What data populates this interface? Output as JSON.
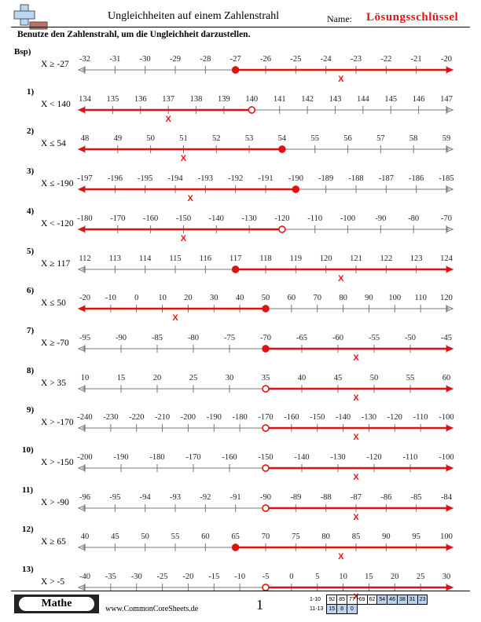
{
  "header": {
    "title": "Ungleichheiten auf einem Zahlenstrahl",
    "name_label": "Name:",
    "answer_key": "Lösungsschlüssel"
  },
  "instructions": "Benutze den Zahlenstrahl, um die Ungleichheit darzustellen.",
  "colors": {
    "accent": "#e11111",
    "line": "#777777"
  },
  "problems": [
    {
      "num": "Bsp)",
      "ineq": "X ≥ -27",
      "ticks": [
        "-32",
        "-31",
        "-30",
        "-29",
        "-28",
        "-27",
        "-26",
        "-25",
        "-24",
        "-23",
        "-22",
        "-21",
        "-20"
      ],
      "point_index": 5,
      "closed": true,
      "dir": "right",
      "x_label": "X"
    },
    {
      "num": "1)",
      "ineq": "X < 140",
      "ticks": [
        "134",
        "135",
        "136",
        "137",
        "138",
        "139",
        "140",
        "141",
        "142",
        "143",
        "144",
        "145",
        "146",
        "147"
      ],
      "point_index": 6,
      "closed": false,
      "dir": "left",
      "x_label": "X"
    },
    {
      "num": "2)",
      "ineq": "X ≤ 54",
      "ticks": [
        "48",
        "49",
        "50",
        "51",
        "52",
        "53",
        "54",
        "55",
        "56",
        "57",
        "58",
        "59"
      ],
      "point_index": 6,
      "closed": true,
      "dir": "left",
      "x_label": "X"
    },
    {
      "num": "3)",
      "ineq": "X ≤ -190",
      "ticks": [
        "-197",
        "-196",
        "-195",
        "-194",
        "-193",
        "-192",
        "-191",
        "-190",
        "-189",
        "-188",
        "-187",
        "-186",
        "-185"
      ],
      "point_index": 7,
      "closed": true,
      "dir": "left",
      "x_label": "X"
    },
    {
      "num": "4)",
      "ineq": "X < -120",
      "ticks": [
        "-180",
        "-170",
        "-160",
        "-150",
        "-140",
        "-130",
        "-120",
        "-110",
        "-100",
        "-90",
        "-80",
        "-70"
      ],
      "point_index": 6,
      "closed": false,
      "dir": "left",
      "x_label": "X"
    },
    {
      "num": "5)",
      "ineq": "X ≥ 117",
      "ticks": [
        "112",
        "113",
        "114",
        "115",
        "116",
        "117",
        "118",
        "119",
        "120",
        "121",
        "122",
        "123",
        "124"
      ],
      "point_index": 5,
      "closed": true,
      "dir": "right",
      "x_label": "X"
    },
    {
      "num": "6)",
      "ineq": "X ≤ 50",
      "ticks": [
        "-20",
        "-10",
        "0",
        "10",
        "20",
        "30",
        "40",
        "50",
        "60",
        "70",
        "80",
        "90",
        "100",
        "110",
        "120"
      ],
      "point_index": 7,
      "closed": true,
      "dir": "left",
      "x_label": "X"
    },
    {
      "num": "7)",
      "ineq": "X ≥ -70",
      "ticks": [
        "-95",
        "-90",
        "-85",
        "-80",
        "-75",
        "-70",
        "-65",
        "-60",
        "-55",
        "-50",
        "-45"
      ],
      "point_index": 5,
      "closed": true,
      "dir": "right",
      "x_label": "X"
    },
    {
      "num": "8)",
      "ineq": "X > 35",
      "ticks": [
        "10",
        "15",
        "20",
        "25",
        "30",
        "35",
        "40",
        "45",
        "50",
        "55",
        "60"
      ],
      "point_index": 5,
      "closed": false,
      "dir": "right",
      "x_label": "X"
    },
    {
      "num": "9)",
      "ineq": "X > -170",
      "ticks": [
        "-240",
        "-230",
        "-220",
        "-210",
        "-200",
        "-190",
        "-180",
        "-170",
        "-160",
        "-150",
        "-140",
        "-130",
        "-120",
        "-110",
        "-100"
      ],
      "point_index": 7,
      "closed": false,
      "dir": "right",
      "x_label": "X"
    },
    {
      "num": "10)",
      "ineq": "X > -150",
      "ticks": [
        "-200",
        "-190",
        "-180",
        "-170",
        "-160",
        "-150",
        "-140",
        "-130",
        "-120",
        "-110",
        "-100"
      ],
      "point_index": 5,
      "closed": false,
      "dir": "right",
      "x_label": "X"
    },
    {
      "num": "11)",
      "ineq": "X > -90",
      "ticks": [
        "-96",
        "-95",
        "-94",
        "-93",
        "-92",
        "-91",
        "-90",
        "-89",
        "-88",
        "-87",
        "-86",
        "-85",
        "-84"
      ],
      "point_index": 6,
      "closed": false,
      "dir": "right",
      "x_label": "X"
    },
    {
      "num": "12)",
      "ineq": "X ≥ 65",
      "ticks": [
        "40",
        "45",
        "50",
        "55",
        "60",
        "65",
        "70",
        "75",
        "80",
        "85",
        "90",
        "95",
        "100"
      ],
      "point_index": 5,
      "closed": true,
      "dir": "right",
      "x_label": "X"
    },
    {
      "num": "13)",
      "ineq": "X > -5",
      "ticks": [
        "-40",
        "-35",
        "-30",
        "-25",
        "-20",
        "-15",
        "-10",
        "-5",
        "0",
        "5",
        "10",
        "15",
        "20",
        "25",
        "30"
      ],
      "point_index": 7,
      "closed": false,
      "dir": "right",
      "x_label": "X"
    }
  ],
  "footer": {
    "subject": "Mathe",
    "url": "www.CommonCoreSheets.de",
    "page": "1",
    "score_rows": [
      {
        "range": "1-10",
        "cells": [
          "92",
          "85",
          "77",
          "69",
          "62",
          "54",
          "46",
          "38",
          "31",
          "23"
        ]
      },
      {
        "range": "11-13",
        "cells": [
          "15",
          "8",
          "0"
        ]
      }
    ]
  }
}
